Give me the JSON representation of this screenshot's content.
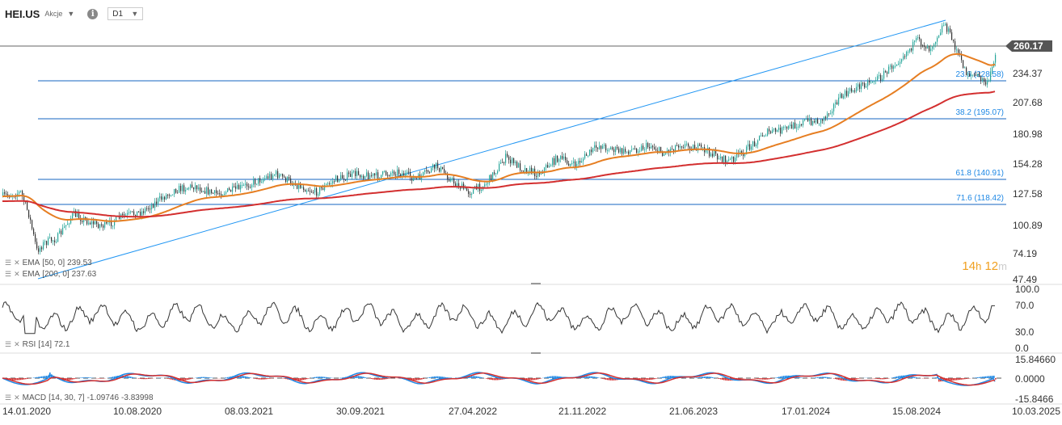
{
  "header": {
    "symbol": "HEI.US",
    "type": "Akcje",
    "info": "i",
    "timeframe": "D1",
    "caret": "▼"
  },
  "price_axis": {
    "labels": [
      "234.37",
      "207.68",
      "180.98",
      "154.28",
      "127.58",
      "100.89",
      "74.19",
      "47.49"
    ],
    "current_price": "260.17",
    "accent_color": "#555555"
  },
  "rsi_axis": {
    "labels": [
      "100.0",
      "70.0",
      "30.0",
      "0.0"
    ]
  },
  "macd_axis": {
    "labels": [
      "15.84660",
      "0.0000",
      "-15.8466"
    ]
  },
  "time_axis": {
    "labels": [
      "14.01.2020",
      "10.08.2020",
      "08.03.2021",
      "30.09.2021",
      "27.04.2022",
      "21.11.2022",
      "21.06.2023",
      "17.01.2024",
      "15.08.2024",
      "10.03.2025"
    ]
  },
  "fib_labels": [
    "23.6 (228.58)",
    "38.2 (195.07)",
    "61.8 (140.91)",
    "71.6 (118.42)"
  ],
  "legends": {
    "ema50": {
      "name": "EMA",
      "params": "[50, 0]",
      "value": "239.53"
    },
    "ema200": {
      "name": "EMA",
      "params": "[200, 0]",
      "value": "237.63"
    },
    "rsi": {
      "name": "RSI",
      "params": "[14]",
      "value": "72.1"
    },
    "macd": {
      "name": "MACD",
      "params": "[14, 30, 7]",
      "v1": "-1.09746",
      "v2": "-3.83998"
    }
  },
  "timer": {
    "hours": "14",
    "h": "h",
    "minutes": "12",
    "m": "m"
  },
  "colors": {
    "up": "#26a69a",
    "down": "#333333",
    "ema50": "#e67e22",
    "ema200": "#d32f2f",
    "fib": "#1565c0",
    "trend": "#2196f3",
    "macd_hist_up": "#1e88e5",
    "macd_hist_down": "#d32f2f"
  },
  "icons": {
    "legend": "legend-list-icon",
    "close": "close-icon"
  }
}
